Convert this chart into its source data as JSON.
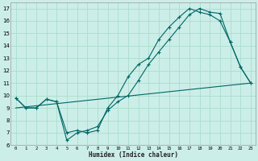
{
  "xlabel": "Humidex (Indice chaleur)",
  "bg_color": "#cceee8",
  "grid_color": "#aaddcc",
  "line_color": "#006666",
  "xlim": [
    -0.5,
    23.5
  ],
  "ylim": [
    6,
    17.5
  ],
  "xticks": [
    0,
    1,
    2,
    3,
    4,
    5,
    6,
    7,
    8,
    9,
    10,
    11,
    12,
    13,
    14,
    15,
    16,
    17,
    18,
    19,
    20,
    21,
    22,
    23
  ],
  "yticks": [
    6,
    7,
    8,
    9,
    10,
    11,
    12,
    13,
    14,
    15,
    16,
    17
  ],
  "line1_x": [
    0,
    1,
    2,
    3,
    4,
    5,
    6,
    7,
    8,
    9,
    10,
    11,
    12,
    13,
    14,
    15,
    16,
    17,
    18,
    19,
    20,
    21,
    22,
    23
  ],
  "line1_y": [
    9.8,
    9.0,
    9.0,
    9.7,
    9.5,
    6.4,
    7.0,
    7.2,
    7.5,
    8.8,
    9.5,
    10.0,
    11.2,
    12.5,
    13.5,
    14.5,
    15.5,
    16.5,
    17.0,
    16.7,
    16.6,
    14.3,
    12.3,
    11.0
  ],
  "line2_x": [
    0,
    1,
    2,
    3,
    4,
    5,
    6,
    7,
    8,
    9,
    10,
    11,
    12,
    13,
    14,
    15,
    16,
    17,
    18,
    19,
    20,
    21,
    22,
    23
  ],
  "line2_y": [
    9.8,
    9.0,
    9.0,
    9.7,
    9.5,
    7.0,
    7.2,
    7.0,
    7.2,
    9.0,
    10.0,
    11.5,
    12.5,
    13.0,
    14.5,
    15.5,
    16.3,
    17.0,
    16.7,
    16.5,
    16.0,
    14.3,
    12.3,
    11.0
  ],
  "line3_x": [
    0,
    23
  ],
  "line3_y": [
    9.0,
    11.0
  ]
}
